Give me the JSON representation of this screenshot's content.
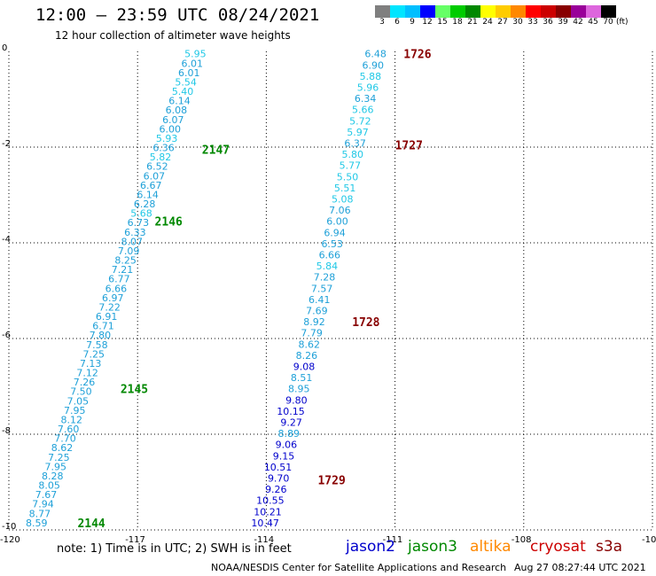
{
  "header": {
    "title": "12:00 – 23:59 UTC 08/24/2021",
    "subtitle": "12 hour collection of altimeter wave heights"
  },
  "palette": {
    "labels": [
      "3",
      "6",
      "9",
      "12",
      "15",
      "18",
      "21",
      "24",
      "27",
      "30",
      "33",
      "36",
      "39",
      "42",
      "45",
      "70"
    ],
    "colors": [
      "#7f7f7f",
      "#00e5ff",
      "#00bfff",
      "#0000ff",
      "#66ff66",
      "#00cc00",
      "#008800",
      "#ffff00",
      "#ffcc00",
      "#ff8800",
      "#ff0000",
      "#cc0000",
      "#880000",
      "#990099",
      "#dd66dd",
      "#000000"
    ],
    "unit": "(ft)"
  },
  "axes": {
    "x_ticks": [
      "-120",
      "-117",
      "-114",
      "-111",
      "-108",
      "-10"
    ],
    "y_ticks": [
      "0",
      "-2",
      "-4",
      "-6",
      "-8",
      "-10"
    ],
    "grid": true
  },
  "chart_data": {
    "type": "scatter",
    "xlim": [
      -120,
      -105
    ],
    "ylim": [
      -10,
      0
    ],
    "tracks": [
      {
        "name": "2144-2147",
        "color_scheme": "swh",
        "start": [
          -115.4,
          -0.05
        ],
        "end": [
          -119.1,
          -9.85
        ],
        "values": [
          "5.95",
          "6.01",
          "6.01",
          "5.54",
          "5.40",
          "6.14",
          "6.08",
          "6.07",
          "6.00",
          "5.93",
          "6.36",
          "5.82",
          "6.52",
          "6.07",
          "6.67",
          "6.14",
          "6.28",
          "5.68",
          "6.73",
          "6.33",
          "8.07",
          "7.09",
          "8.25",
          "7.21",
          "6.77",
          "6.66",
          "6.97",
          "7.22",
          "6.91",
          "6.71",
          "7.80",
          "7.58",
          "7.25",
          "7.13",
          "7.12",
          "7.26",
          "7.50",
          "7.05",
          "7.95",
          "8.12",
          "7.60",
          "7.70",
          "8.62",
          "7.25",
          "7.95",
          "8.28",
          "8.05",
          "7.67",
          "7.94",
          "8.77",
          "8.59"
        ],
        "pass_labels": [
          {
            "text": "2147",
            "y": -2.05,
            "x": -115.5,
            "color": "#008800"
          },
          {
            "text": "2146",
            "y": -3.55,
            "x": -116.6,
            "color": "#008800"
          },
          {
            "text": "2145",
            "y": -7.05,
            "x": -117.4,
            "color": "#008800"
          },
          {
            "text": "2144",
            "y": -9.85,
            "x": -118.4,
            "color": "#008800"
          }
        ]
      },
      {
        "name": "1726-1729",
        "color_scheme": "swh",
        "start": [
          -111.2,
          -0.05
        ],
        "end": [
          -113.7,
          -9.85
        ],
        "values": [
          "6.48",
          "6.90",
          "5.88",
          "5.96",
          "6.34",
          "5.66",
          "5.72",
          "5.97",
          "6.37",
          "5.80",
          "5.77",
          "5.50",
          "5.51",
          "5.08",
          "7.06",
          "6.00",
          "6.94",
          "6.53",
          "6.66",
          "5.84",
          "7.28",
          "7.57",
          "6.41",
          "7.69",
          "8.92",
          "7.79",
          "8.62",
          "8.26",
          "9.08",
          "8.51",
          "8.95",
          "9.80",
          "10.15",
          "9.27",
          "8.89",
          "9.06",
          "9.15",
          "10.51",
          "9.70",
          "9.26",
          "10.55",
          "10.21",
          "10.47"
        ],
        "pass_labels": [
          {
            "text": "1726",
            "y": -0.05,
            "x": -110.8,
            "color": "#880000"
          },
          {
            "text": "1727",
            "y": -1.95,
            "x": -111.0,
            "color": "#880000"
          },
          {
            "text": "1728",
            "y": -5.65,
            "x": -112.0,
            "color": "#880000"
          },
          {
            "text": "1729",
            "y": -8.95,
            "x": -112.8,
            "color": "#880000"
          }
        ]
      }
    ]
  },
  "legend": {
    "note": "note:  1) Time is in UTC;  2) SWH is in feet",
    "satellites": [
      {
        "name": "jason2",
        "color": "#0000cc"
      },
      {
        "name": "jason3",
        "color": "#008800"
      },
      {
        "name": "altika",
        "color": "#ff8800"
      },
      {
        "name": "cryosat",
        "color": "#cc0000"
      },
      {
        "name": "s3a",
        "color": "#880000"
      }
    ]
  },
  "footer": {
    "credit": "NOAA/NESDIS Center for Satellite Applications and Research",
    "timestamp": "Aug 27 08:27:44 UTC 2021"
  }
}
